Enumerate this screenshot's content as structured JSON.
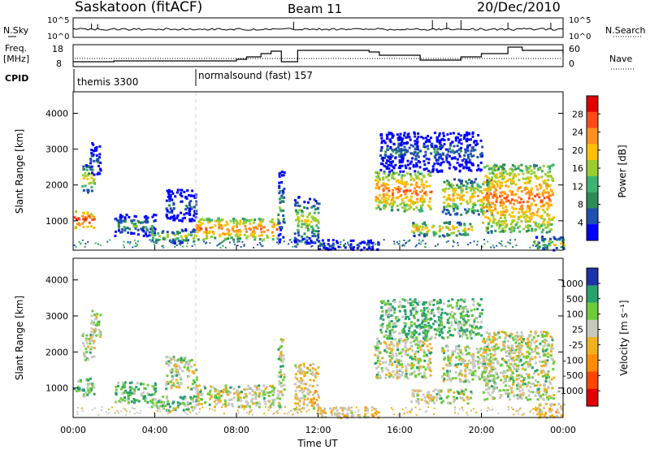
{
  "header": {
    "station": "Saskatoon (fitACF)",
    "beam": "Beam 11",
    "date": "20/Dec/2010"
  },
  "top_panel": {
    "left_label": "N.Sky",
    "right_label": "N.Search",
    "left_ticks": [
      "10^5",
      "10^0"
    ],
    "right_ticks": [
      "10^5",
      "10^0"
    ]
  },
  "freq_panel": {
    "left_label_1": "Freq.",
    "left_label_2": "[MHz]",
    "right_label": "Nave",
    "left_ticks": [
      "18",
      "8"
    ],
    "right_ticks": [
      "60",
      "0"
    ]
  },
  "cpid": {
    "label": "CPID",
    "segments": [
      {
        "name": "themis 3300",
        "start_hour": 0
      },
      {
        "name": "normalsound (fast) 157",
        "start_hour": 6
      }
    ]
  },
  "x_axis": {
    "label": "Time UT",
    "ticks": [
      "00:00",
      "04:00",
      "08:00",
      "12:00",
      "16:00",
      "20:00",
      "00:00"
    ]
  },
  "power_panel": {
    "ylabel": "Slant Range [km]",
    "yticks": [
      "4000",
      "3000",
      "2000",
      "1000"
    ],
    "colorbar_label": "Power [dB]",
    "colorbar_ticks": [
      "28",
      "24",
      "20",
      "16",
      "12",
      "8",
      "4"
    ],
    "colors": [
      "#e00000",
      "#ff4a1a",
      "#ff9020",
      "#ffc000",
      "#9acd32",
      "#3cb371",
      "#2e8b57",
      "#1f4fb0",
      "#0000ff"
    ]
  },
  "velocity_panel": {
    "ylabel": "Slant Range [km]",
    "yticks": [
      "4000",
      "3000",
      "2000",
      "1000"
    ],
    "colorbar_label": "Velocity [m s⁻¹]",
    "colorbar_ticks": [
      "1000",
      "500",
      "100",
      "25",
      "-25",
      "-100",
      "-500",
      "-1000"
    ],
    "colors": [
      "#1d33a8",
      "#2aa070",
      "#6ccc3a",
      "#c8c8c0",
      "#f0b020",
      "#ff8c00",
      "#ff4500",
      "#e00000"
    ]
  },
  "chart_data": {
    "type": "heatmap",
    "title": "Saskatoon (fitACF)  Beam 11  20/Dec/2010",
    "xlabel": "Time UT",
    "ylabel": "Slant Range [km]",
    "xlim_hours": [
      0,
      24
    ],
    "ylim_km": [
      180,
      4600
    ],
    "bands": [
      {
        "t0": 0.0,
        "t1": 1.0,
        "r0": 800,
        "r1": 1300,
        "power": 28,
        "vel": 100
      },
      {
        "t0": 0.4,
        "t1": 1.0,
        "r0": 1800,
        "r1": 2600,
        "power": 18,
        "vel": 25
      },
      {
        "t0": 0.8,
        "t1": 1.3,
        "r0": 2300,
        "r1": 3200,
        "power": 8,
        "vel": 25
      },
      {
        "t0": 2.0,
        "t1": 4.0,
        "r0": 600,
        "r1": 1200,
        "power": 12,
        "vel": 100
      },
      {
        "t0": 3.8,
        "t1": 6.0,
        "r0": 400,
        "r1": 800,
        "power": 16,
        "vel": 100
      },
      {
        "t0": 4.5,
        "t1": 6.0,
        "r0": 1000,
        "r1": 1900,
        "power": 8,
        "vel": 25
      },
      {
        "t0": 6.0,
        "t1": 10.0,
        "r0": 500,
        "r1": 1100,
        "power": 24,
        "vel": 25
      },
      {
        "t0": 10.0,
        "t1": 10.3,
        "r0": 400,
        "r1": 2400,
        "power": 12,
        "vel": 25
      },
      {
        "t0": 10.8,
        "t1": 12.0,
        "r0": 400,
        "r1": 1700,
        "power": 16,
        "vel": -25
      },
      {
        "t0": 12.0,
        "t1": 15.0,
        "r0": 200,
        "r1": 500,
        "power": 8,
        "vel": -25
      },
      {
        "t0": 14.7,
        "t1": 17.5,
        "r0": 1300,
        "r1": 2400,
        "power": 24,
        "vel": 25
      },
      {
        "t0": 15.0,
        "t1": 20.0,
        "r0": 2400,
        "r1": 3500,
        "power": 8,
        "vel": 100
      },
      {
        "t0": 16.5,
        "t1": 19.5,
        "r0": 600,
        "r1": 1000,
        "power": 20,
        "vel": 25
      },
      {
        "t0": 18.0,
        "t1": 20.5,
        "r0": 1200,
        "r1": 2200,
        "power": 20,
        "vel": 25
      },
      {
        "t0": 20.0,
        "t1": 23.5,
        "r0": 700,
        "r1": 2600,
        "power": 24,
        "vel": 25
      },
      {
        "t0": 22.5,
        "t1": 24.0,
        "r0": 200,
        "r1": 600,
        "power": 16,
        "vel": -25
      }
    ]
  }
}
